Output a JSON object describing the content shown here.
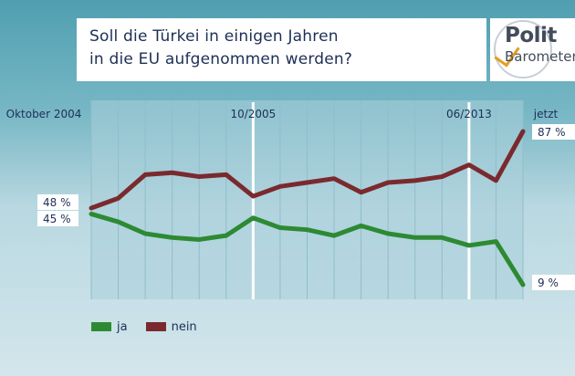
{
  "title": "Soll die Türkei in einigen Jahren\nin die EU aufgenommen werden?",
  "logo": {
    "line1": "Polit",
    "line2": "Barometer"
  },
  "chart_data": {
    "type": "line",
    "x": [
      "Oktober 2004",
      "",
      "",
      "",
      "",
      "",
      "10/2005",
      "",
      "",
      "",
      "",
      "",
      "",
      "",
      "",
      "",
      "06/2013",
      "",
      "jetzt"
    ],
    "x_tick_labels": [
      {
        "index": 0,
        "label": "Oktober 2004"
      },
      {
        "index": 6,
        "label": "10/2005"
      },
      {
        "index": 16,
        "label": "06/2013"
      },
      {
        "index": 18,
        "label": "jetzt"
      }
    ],
    "highlight_indices": [
      6,
      16
    ],
    "ylim": [
      0,
      100
    ],
    "grid": true,
    "legend": "bottom-left",
    "series": [
      {
        "name": "ja",
        "color": "#2d8a33",
        "values": [
          45,
          41,
          35,
          33,
          32,
          34,
          43,
          38,
          37,
          34,
          39,
          35,
          33,
          33,
          29,
          31,
          9,
          null,
          null
        ],
        "end_label": "9 %",
        "start_label": "45 %"
      },
      {
        "name": "nein",
        "color": "#7a2a2e",
        "values": [
          48,
          53,
          65,
          66,
          64,
          65,
          54,
          59,
          61,
          63,
          56,
          61,
          62,
          64,
          70,
          62,
          87,
          null,
          null
        ],
        "end_label": "87 %",
        "start_label": "48 %"
      }
    ]
  }
}
